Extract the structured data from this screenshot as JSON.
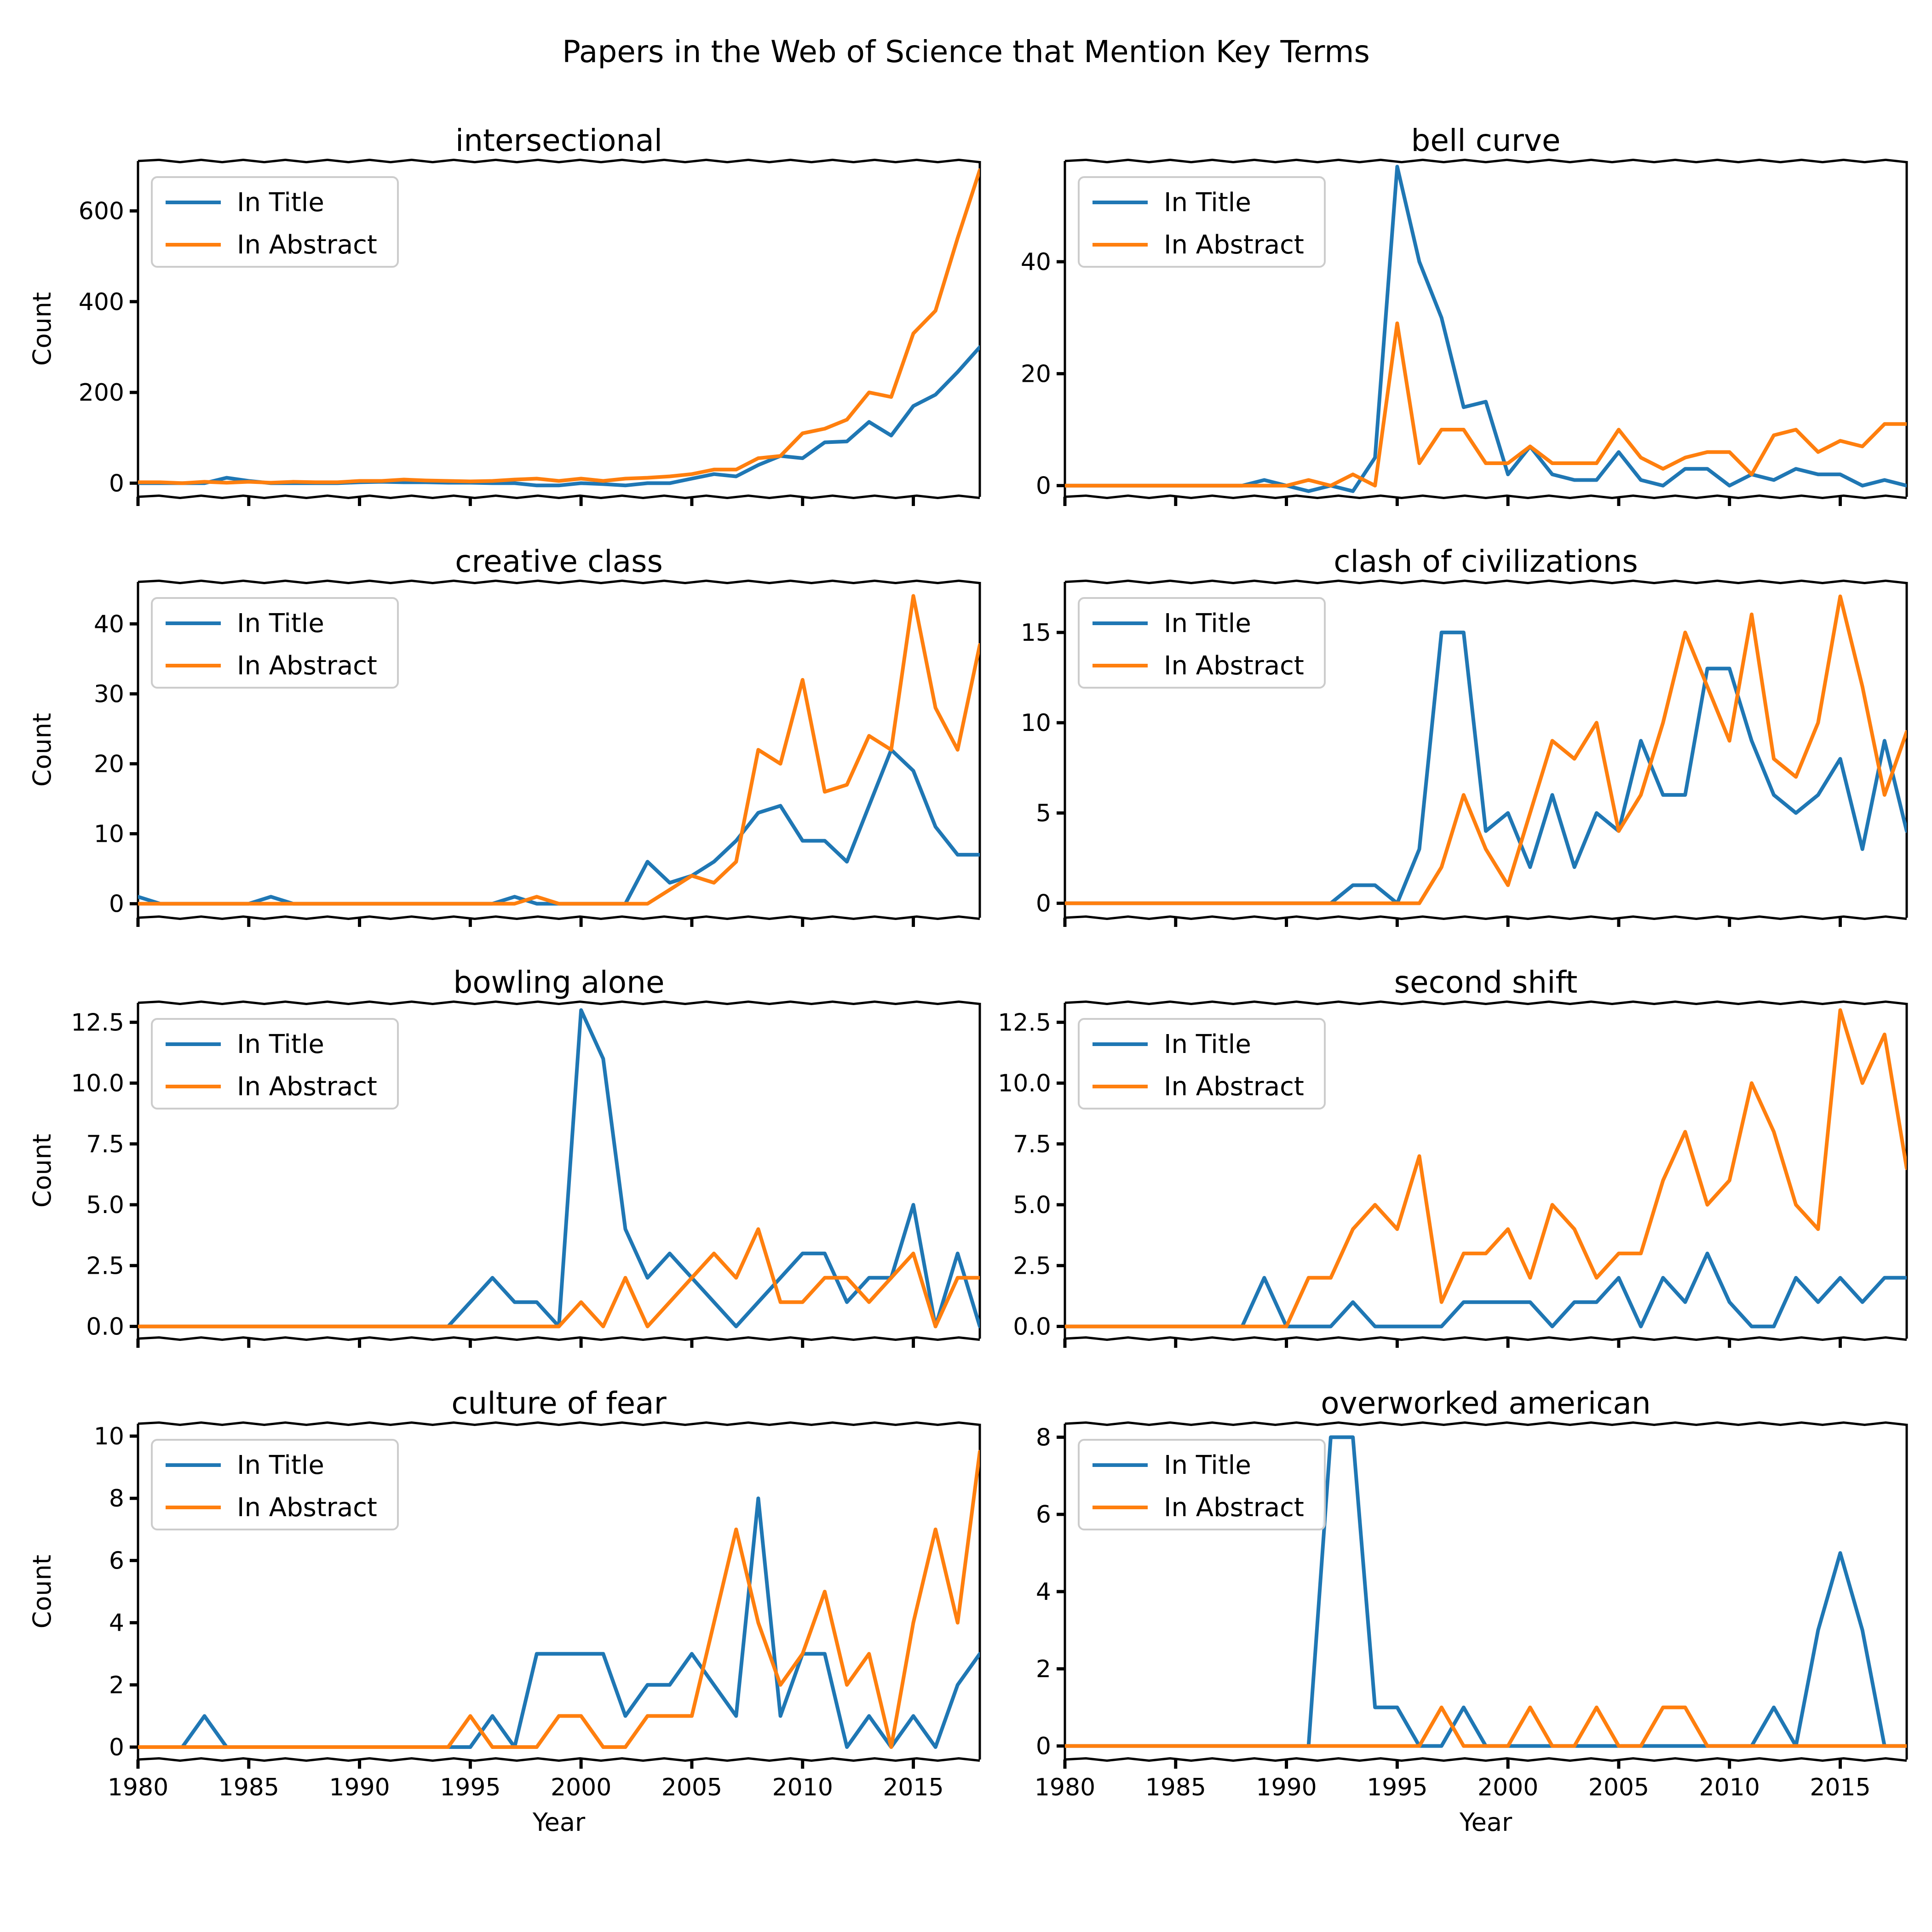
{
  "figure": {
    "suptitle": "Papers in the Web of Science that Mention Key Terms",
    "legend_labels": [
      "In Title",
      "In Abstract"
    ],
    "series_colors": [
      "#1f77b4",
      "#ff7f0e"
    ],
    "ylabel": "Count",
    "xlabel": "Year",
    "x_ticks": [
      1980,
      1985,
      1990,
      1995,
      2000,
      2005,
      2010,
      2015
    ],
    "legend_position": "upper-left"
  },
  "chart_data": [
    {
      "type": "line",
      "title": "intersectional",
      "ylabel": "Count",
      "xlabel": "",
      "xlim": [
        1980,
        2018
      ],
      "ylim": [
        -30,
        710
      ],
      "y_ticks": [
        0,
        200,
        400,
        600
      ],
      "x": [
        1980,
        1981,
        1982,
        1983,
        1984,
        1985,
        1986,
        1987,
        1988,
        1989,
        1990,
        1991,
        1992,
        1993,
        1994,
        1995,
        1996,
        1997,
        1998,
        1999,
        2000,
        2001,
        2002,
        2003,
        2004,
        2005,
        2006,
        2007,
        2008,
        2009,
        2010,
        2011,
        2012,
        2013,
        2014,
        2015,
        2016,
        2017,
        2018
      ],
      "series": [
        {
          "name": "In Title",
          "values": [
            0,
            0,
            0,
            0,
            12,
            5,
            0,
            0,
            0,
            0,
            2,
            3,
            2,
            2,
            1,
            1,
            0,
            0,
            -5,
            -5,
            0,
            -2,
            -5,
            0,
            0,
            10,
            20,
            15,
            40,
            60,
            55,
            90,
            92,
            135,
            105,
            170,
            195,
            245,
            300
          ]
        },
        {
          "name": "In Abstract",
          "values": [
            2,
            2,
            0,
            3,
            1,
            3,
            1,
            3,
            2,
            2,
            5,
            5,
            8,
            6,
            5,
            4,
            5,
            8,
            10,
            5,
            10,
            5,
            10,
            12,
            15,
            20,
            30,
            30,
            55,
            60,
            110,
            120,
            140,
            200,
            190,
            330,
            380,
            540,
            690
          ]
        }
      ]
    },
    {
      "type": "line",
      "title": "bell curve",
      "ylabel": "",
      "xlabel": "",
      "xlim": [
        1980,
        2018
      ],
      "ylim": [
        -2,
        58
      ],
      "y_ticks": [
        0,
        20,
        40
      ],
      "x": [
        1980,
        1981,
        1982,
        1983,
        1984,
        1985,
        1986,
        1987,
        1988,
        1989,
        1990,
        1991,
        1992,
        1993,
        1994,
        1995,
        1996,
        1997,
        1998,
        1999,
        2000,
        2001,
        2002,
        2003,
        2004,
        2005,
        2006,
        2007,
        2008,
        2009,
        2010,
        2011,
        2012,
        2013,
        2014,
        2015,
        2016,
        2017,
        2018
      ],
      "series": [
        {
          "name": "In Title",
          "values": [
            0,
            0,
            0,
            0,
            0,
            0,
            0,
            0,
            0,
            1,
            0,
            -1,
            0,
            -1,
            5,
            57,
            40,
            30,
            14,
            15,
            2,
            7,
            2,
            1,
            1,
            6,
            1,
            0,
            3,
            3,
            0,
            2,
            1,
            3,
            2,
            2,
            0,
            1,
            0
          ]
        },
        {
          "name": "In Abstract",
          "values": [
            0,
            0,
            0,
            0,
            0,
            0,
            0,
            0,
            0,
            0,
            0,
            1,
            0,
            2,
            0,
            29,
            4,
            10,
            10,
            4,
            4,
            7,
            4,
            4,
            4,
            10,
            5,
            3,
            5,
            6,
            6,
            2,
            9,
            10,
            6,
            8,
            7,
            11,
            11
          ]
        }
      ]
    },
    {
      "type": "line",
      "title": "creative class",
      "ylabel": "Count",
      "xlabel": "",
      "xlim": [
        1980,
        2018
      ],
      "ylim": [
        -2,
        46
      ],
      "y_ticks": [
        0,
        10,
        20,
        30,
        40
      ],
      "x": [
        1980,
        1981,
        1982,
        1983,
        1984,
        1985,
        1986,
        1987,
        1988,
        1989,
        1990,
        1991,
        1992,
        1993,
        1994,
        1995,
        1996,
        1997,
        1998,
        1999,
        2000,
        2001,
        2002,
        2003,
        2004,
        2005,
        2006,
        2007,
        2008,
        2009,
        2010,
        2011,
        2012,
        2013,
        2014,
        2015,
        2016,
        2017,
        2018
      ],
      "series": [
        {
          "name": "In Title",
          "values": [
            1,
            0,
            0,
            0,
            0,
            0,
            1,
            0,
            0,
            0,
            0,
            0,
            0,
            0,
            0,
            0,
            0,
            1,
            0,
            0,
            0,
            0,
            0,
            6,
            3,
            4,
            6,
            9,
            13,
            14,
            9,
            9,
            6,
            14,
            22,
            19,
            11,
            7,
            7
          ]
        },
        {
          "name": "In Abstract",
          "values": [
            0,
            0,
            0,
            0,
            0,
            0,
            0,
            0,
            0,
            0,
            0,
            0,
            0,
            0,
            0,
            0,
            0,
            0,
            1,
            0,
            0,
            0,
            0,
            0,
            2,
            4,
            3,
            6,
            22,
            20,
            32,
            16,
            17,
            24,
            22,
            44,
            28,
            22,
            37
          ]
        }
      ]
    },
    {
      "type": "line",
      "title": "clash of civilizations",
      "ylabel": "",
      "xlabel": "",
      "xlim": [
        1980,
        2018
      ],
      "ylim": [
        -0.8,
        17.8
      ],
      "y_ticks": [
        0,
        5,
        10,
        15
      ],
      "x": [
        1980,
        1981,
        1982,
        1983,
        1984,
        1985,
        1986,
        1987,
        1988,
        1989,
        1990,
        1991,
        1992,
        1993,
        1994,
        1995,
        1996,
        1997,
        1998,
        1999,
        2000,
        2001,
        2002,
        2003,
        2004,
        2005,
        2006,
        2007,
        2008,
        2009,
        2010,
        2011,
        2012,
        2013,
        2014,
        2015,
        2016,
        2017,
        2018
      ],
      "series": [
        {
          "name": "In Title",
          "values": [
            0,
            0,
            0,
            0,
            0,
            0,
            0,
            0,
            0,
            0,
            0,
            0,
            0,
            1,
            1,
            0,
            3,
            15,
            15,
            4,
            5,
            2,
            6,
            2,
            5,
            4,
            9,
            6,
            6,
            13,
            13,
            9,
            6,
            5,
            6,
            8,
            3,
            9,
            4
          ]
        },
        {
          "name": "In Abstract",
          "values": [
            0,
            0,
            0,
            0,
            0,
            0,
            0,
            0,
            0,
            0,
            0,
            0,
            0,
            0,
            0,
            0,
            0,
            2,
            6,
            3,
            1,
            5,
            9,
            8,
            10,
            4,
            6,
            10,
            15,
            12,
            9,
            16,
            8,
            7,
            10,
            17,
            12,
            6,
            9.5
          ]
        }
      ]
    },
    {
      "type": "line",
      "title": "bowling alone",
      "ylabel": "Count",
      "xlabel": "",
      "xlim": [
        1980,
        2018
      ],
      "ylim": [
        -0.5,
        13.3
      ],
      "y_ticks": [
        0.0,
        2.5,
        5.0,
        7.5,
        10.0,
        12.5
      ],
      "x": [
        1980,
        1981,
        1982,
        1983,
        1984,
        1985,
        1986,
        1987,
        1988,
        1989,
        1990,
        1991,
        1992,
        1993,
        1994,
        1995,
        1996,
        1997,
        1998,
        1999,
        2000,
        2001,
        2002,
        2003,
        2004,
        2005,
        2006,
        2007,
        2008,
        2009,
        2010,
        2011,
        2012,
        2013,
        2014,
        2015,
        2016,
        2017,
        2018
      ],
      "series": [
        {
          "name": "In Title",
          "values": [
            0,
            0,
            0,
            0,
            0,
            0,
            0,
            0,
            0,
            0,
            0,
            0,
            0,
            0,
            0,
            1,
            2,
            1,
            1,
            0,
            13,
            11,
            4,
            2,
            3,
            2,
            1,
            0,
            1,
            2,
            3,
            3,
            1,
            2,
            2,
            5,
            0,
            3,
            0
          ]
        },
        {
          "name": "In Abstract",
          "values": [
            0,
            0,
            0,
            0,
            0,
            0,
            0,
            0,
            0,
            0,
            0,
            0,
            0,
            0,
            0,
            0,
            0,
            0,
            0,
            0,
            1,
            0,
            2,
            0,
            1,
            2,
            3,
            2,
            4,
            1,
            1,
            2,
            2,
            1,
            2,
            3,
            0,
            2,
            2
          ]
        }
      ]
    },
    {
      "type": "line",
      "title": "second shift",
      "ylabel": "",
      "xlabel": "",
      "xlim": [
        1980,
        2018
      ],
      "ylim": [
        -0.5,
        13.3
      ],
      "y_ticks": [
        0.0,
        2.5,
        5.0,
        7.5,
        10.0,
        12.5
      ],
      "x": [
        1980,
        1981,
        1982,
        1983,
        1984,
        1985,
        1986,
        1987,
        1988,
        1989,
        1990,
        1991,
        1992,
        1993,
        1994,
        1995,
        1996,
        1997,
        1998,
        1999,
        2000,
        2001,
        2002,
        2003,
        2004,
        2005,
        2006,
        2007,
        2008,
        2009,
        2010,
        2011,
        2012,
        2013,
        2014,
        2015,
        2016,
        2017,
        2018
      ],
      "series": [
        {
          "name": "In Title",
          "values": [
            0,
            0,
            0,
            0,
            0,
            0,
            0,
            0,
            0,
            2,
            0,
            0,
            0,
            1,
            0,
            0,
            0,
            0,
            1,
            1,
            1,
            1,
            0,
            1,
            1,
            2,
            0,
            2,
            1,
            3,
            1,
            0,
            0,
            2,
            1,
            2,
            1,
            2,
            2
          ]
        },
        {
          "name": "In Abstract",
          "values": [
            0,
            0,
            0,
            0,
            0,
            0,
            0,
            0,
            0,
            0,
            0,
            2,
            2,
            4,
            5,
            4,
            7,
            1,
            3,
            3,
            4,
            2,
            5,
            4,
            2,
            3,
            3,
            6,
            8,
            5,
            6,
            10,
            8,
            5,
            4,
            13,
            10,
            12,
            6.5
          ]
        }
      ]
    },
    {
      "type": "line",
      "title": "culture of fear",
      "ylabel": "Count",
      "xlabel": "Year",
      "xlim": [
        1980,
        2018
      ],
      "ylim": [
        -0.4,
        10.4
      ],
      "y_ticks": [
        0,
        2,
        4,
        6,
        8,
        10
      ],
      "x": [
        1980,
        1981,
        1982,
        1983,
        1984,
        1985,
        1986,
        1987,
        1988,
        1989,
        1990,
        1991,
        1992,
        1993,
        1994,
        1995,
        1996,
        1997,
        1998,
        1999,
        2000,
        2001,
        2002,
        2003,
        2004,
        2005,
        2006,
        2007,
        2008,
        2009,
        2010,
        2011,
        2012,
        2013,
        2014,
        2015,
        2016,
        2017,
        2018
      ],
      "series": [
        {
          "name": "In Title",
          "values": [
            0,
            0,
            0,
            1,
            0,
            0,
            0,
            0,
            0,
            0,
            0,
            0,
            0,
            0,
            0,
            0,
            1,
            0,
            3,
            3,
            3,
            3,
            1,
            2,
            2,
            3,
            2,
            1,
            8,
            1,
            3,
            3,
            0,
            1,
            0,
            1,
            0,
            2,
            3
          ]
        },
        {
          "name": "In Abstract",
          "values": [
            0,
            0,
            0,
            0,
            0,
            0,
            0,
            0,
            0,
            0,
            0,
            0,
            0,
            0,
            0,
            1,
            0,
            0,
            0,
            1,
            1,
            0,
            0,
            1,
            1,
            1,
            4,
            7,
            4,
            2,
            3,
            5,
            2,
            3,
            0,
            4,
            7,
            4,
            9.5
          ]
        }
      ]
    },
    {
      "type": "line",
      "title": "overworked american",
      "ylabel": "",
      "xlabel": "Year",
      "xlim": [
        1980,
        2018
      ],
      "ylim": [
        -0.35,
        8.35
      ],
      "y_ticks": [
        0,
        2,
        4,
        6,
        8
      ],
      "x": [
        1980,
        1981,
        1982,
        1983,
        1984,
        1985,
        1986,
        1987,
        1988,
        1989,
        1990,
        1991,
        1992,
        1993,
        1994,
        1995,
        1996,
        1997,
        1998,
        1999,
        2000,
        2001,
        2002,
        2003,
        2004,
        2005,
        2006,
        2007,
        2008,
        2009,
        2010,
        2011,
        2012,
        2013,
        2014,
        2015,
        2016,
        2017,
        2018
      ],
      "series": [
        {
          "name": "In Title",
          "values": [
            0,
            0,
            0,
            0,
            0,
            0,
            0,
            0,
            0,
            0,
            0,
            0,
            8,
            8,
            1,
            1,
            0,
            0,
            1,
            0,
            0,
            0,
            0,
            0,
            0,
            0,
            0,
            0,
            0,
            0,
            0,
            0,
            1,
            0,
            3,
            5,
            3,
            0,
            0
          ]
        },
        {
          "name": "In Abstract",
          "values": [
            0,
            0,
            0,
            0,
            0,
            0,
            0,
            0,
            0,
            0,
            0,
            0,
            0,
            0,
            0,
            0,
            0,
            1,
            0,
            0,
            0,
            1,
            0,
            0,
            1,
            0,
            0,
            1,
            1,
            0,
            0,
            0,
            0,
            0,
            0,
            0,
            0,
            0,
            0
          ]
        }
      ]
    }
  ]
}
